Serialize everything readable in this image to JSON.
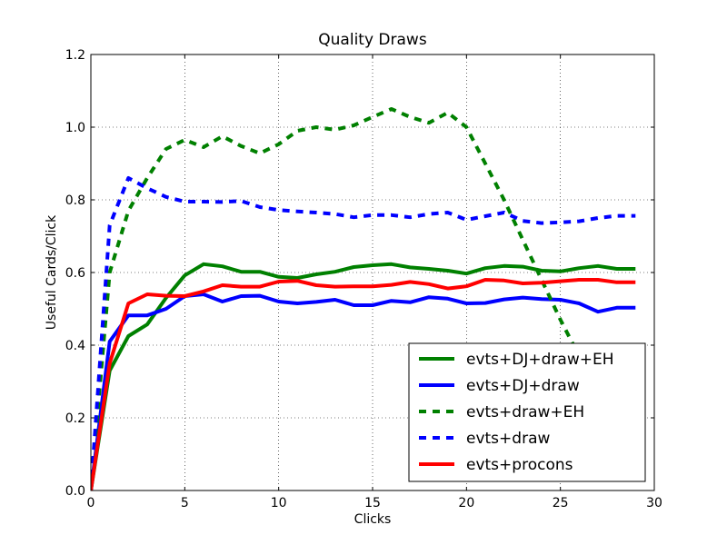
{
  "chart_data": {
    "type": "line",
    "title": "Quality Draws",
    "xlabel": "Clicks",
    "ylabel": "Useful Cards/Click",
    "xlim": [
      0,
      30
    ],
    "ylim": [
      0.0,
      1.2
    ],
    "xticks": [
      0,
      5,
      10,
      15,
      20,
      25,
      30
    ],
    "xtick_labels": [
      "0",
      "5",
      "10",
      "15",
      "20",
      "25",
      "30"
    ],
    "yticks": [
      0.0,
      0.2,
      0.4,
      0.6,
      0.8,
      1.0,
      1.2
    ],
    "ytick_labels": [
      "0.0",
      "0.2",
      "0.4",
      "0.6",
      "0.8",
      "1.0",
      "1.2"
    ],
    "grid": true,
    "legend_position": "lower-right",
    "series": [
      {
        "name": "evts+DJ+draw+EH",
        "color": "#008000",
        "style": "solid",
        "x": [
          0,
          1,
          2,
          3,
          4,
          5,
          6,
          7,
          8,
          9,
          10,
          11,
          12,
          13,
          14,
          15,
          16,
          17,
          18,
          19,
          20,
          21,
          22,
          23,
          24,
          25,
          26,
          27,
          28,
          29
        ],
        "y": [
          0.0,
          0.33,
          0.425,
          0.457,
          0.53,
          0.592,
          0.623,
          0.617,
          0.602,
          0.602,
          0.588,
          0.585,
          0.595,
          0.602,
          0.615,
          0.62,
          0.623,
          0.614,
          0.61,
          0.605,
          0.597,
          0.612,
          0.618,
          0.616,
          0.605,
          0.603,
          0.612,
          0.618,
          0.61,
          0.61
        ]
      },
      {
        "name": "evts+DJ+draw",
        "color": "#0000ff",
        "style": "solid",
        "x": [
          0,
          1,
          2,
          3,
          4,
          5,
          6,
          7,
          8,
          9,
          10,
          11,
          12,
          13,
          14,
          15,
          16,
          17,
          18,
          19,
          20,
          21,
          22,
          23,
          24,
          25,
          26,
          27,
          28,
          29
        ],
        "y": [
          0.0,
          0.41,
          0.482,
          0.482,
          0.5,
          0.535,
          0.54,
          0.52,
          0.535,
          0.536,
          0.52,
          0.515,
          0.519,
          0.525,
          0.51,
          0.51,
          0.522,
          0.518,
          0.532,
          0.528,
          0.515,
          0.516,
          0.526,
          0.531,
          0.527,
          0.525,
          0.515,
          0.492,
          0.503,
          0.503
        ]
      },
      {
        "name": "evts+draw+EH",
        "color": "#008000",
        "style": "dashed",
        "x": [
          0,
          1,
          2,
          3,
          4,
          5,
          6,
          7,
          8,
          9,
          10,
          11,
          12,
          13,
          14,
          15,
          16,
          17,
          18,
          19,
          20,
          21,
          22,
          23,
          24,
          25,
          26,
          27,
          28,
          29
        ],
        "y": [
          0.0,
          0.6,
          0.77,
          0.86,
          0.94,
          0.965,
          0.945,
          0.975,
          0.948,
          0.928,
          0.953,
          0.99,
          1.0,
          0.993,
          1.005,
          1.028,
          1.05,
          1.028,
          1.012,
          1.04,
          1.0,
          0.9,
          0.8,
          0.69,
          0.58,
          0.47,
          0.37,
          0.27,
          0.18,
          0.12
        ]
      },
      {
        "name": "evts+draw",
        "color": "#0000ff",
        "style": "dashed",
        "x": [
          0,
          1,
          2,
          3,
          4,
          5,
          6,
          7,
          8,
          9,
          10,
          11,
          12,
          13,
          14,
          15,
          16,
          17,
          18,
          19,
          20,
          21,
          22,
          23,
          24,
          25,
          26,
          27,
          28,
          29
        ],
        "y": [
          0.0,
          0.73,
          0.86,
          0.832,
          0.808,
          0.795,
          0.795,
          0.794,
          0.797,
          0.78,
          0.772,
          0.768,
          0.765,
          0.761,
          0.752,
          0.758,
          0.758,
          0.752,
          0.761,
          0.765,
          0.745,
          0.755,
          0.765,
          0.742,
          0.736,
          0.738,
          0.741,
          0.75,
          0.756,
          0.756
        ]
      },
      {
        "name": "evts+procons",
        "color": "#ff0000",
        "style": "solid",
        "x": [
          0,
          1,
          2,
          3,
          4,
          5,
          6,
          7,
          8,
          9,
          10,
          11,
          12,
          13,
          14,
          15,
          16,
          17,
          18,
          19,
          20,
          21,
          22,
          23,
          24,
          25,
          26,
          27,
          28,
          29
        ],
        "y": [
          0.0,
          0.35,
          0.515,
          0.54,
          0.536,
          0.535,
          0.548,
          0.565,
          0.561,
          0.561,
          0.575,
          0.577,
          0.565,
          0.561,
          0.562,
          0.562,
          0.566,
          0.574,
          0.568,
          0.556,
          0.562,
          0.58,
          0.578,
          0.57,
          0.572,
          0.576,
          0.58,
          0.58,
          0.573,
          0.573
        ]
      }
    ]
  }
}
